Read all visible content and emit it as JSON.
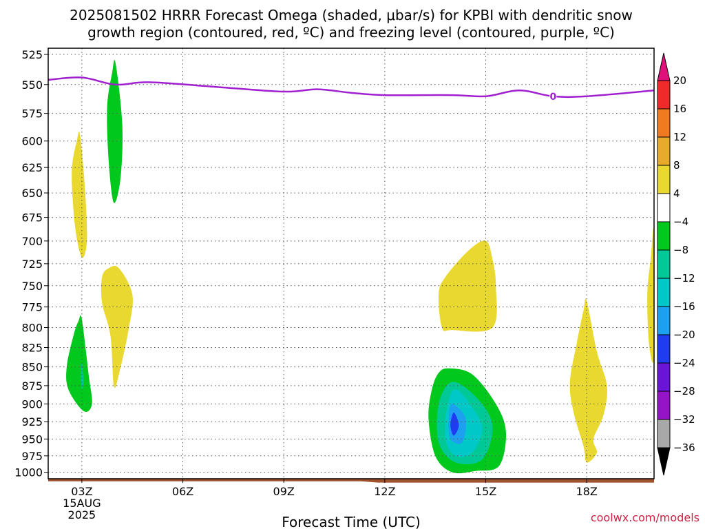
{
  "title_line1": "2025081502 HRRR Forecast Omega (shaded, μbar/s) for KPBI with dendritic snow",
  "title_line2": "growth region (contoured, red, ºC) and freezing level (contoured, purple, ºC)",
  "credit": "coolwx.com/models",
  "chart_data": {
    "type": "heatmap",
    "xlabel": "Forecast Time (UTC)",
    "ylabel": "",
    "x_range_hours": [
      2,
      20
    ],
    "y_range_hPa": [
      1010,
      520
    ],
    "grid": true,
    "y_ticks": [
      525,
      550,
      575,
      600,
      625,
      650,
      675,
      700,
      725,
      750,
      775,
      800,
      825,
      850,
      875,
      900,
      925,
      950,
      975,
      1000
    ],
    "x_ticks": [
      {
        "hour": 3,
        "label": "03Z",
        "date": "15AUG",
        "year": "2025"
      },
      {
        "hour": 6,
        "label": "06Z"
      },
      {
        "hour": 9,
        "label": "09Z"
      },
      {
        "hour": 12,
        "label": "12Z"
      },
      {
        "hour": 15,
        "label": "15Z"
      },
      {
        "hour": 18,
        "label": "18Z"
      }
    ],
    "freezing_level": {
      "color": "#a020d0",
      "label": "0",
      "label_at": [
        17.0,
        560
      ],
      "points": [
        [
          2.0,
          546
        ],
        [
          3.0,
          544
        ],
        [
          4.0,
          550
        ],
        [
          5.0,
          548
        ],
        [
          7.0,
          552
        ],
        [
          9.0,
          556
        ],
        [
          10.0,
          554
        ],
        [
          11.0,
          557
        ],
        [
          12.0,
          559
        ],
        [
          14.0,
          559
        ],
        [
          15.0,
          560
        ],
        [
          16.0,
          555
        ],
        [
          17.0,
          560
        ],
        [
          18.0,
          560
        ],
        [
          20.0,
          555
        ]
      ]
    },
    "ground": {
      "color": "#a0522d",
      "points": [
        [
          2.0,
          1014
        ],
        [
          11.3,
          1014
        ],
        [
          11.8,
          1016
        ],
        [
          20.0,
          1016
        ]
      ]
    },
    "omega_regions": [
      {
        "value": 4,
        "points": [
          [
            2.95,
            595
          ],
          [
            3.1,
            650
          ],
          [
            3.15,
            700
          ],
          [
            3.0,
            718
          ],
          [
            2.8,
            685
          ],
          [
            2.7,
            630
          ],
          [
            2.85,
            600
          ]
        ]
      },
      {
        "value": -4,
        "points": [
          [
            4.0,
            532
          ],
          [
            4.2,
            585
          ],
          [
            4.15,
            635
          ],
          [
            3.95,
            660
          ],
          [
            3.8,
            620
          ],
          [
            3.75,
            570
          ],
          [
            3.9,
            540
          ]
        ]
      },
      {
        "value": 4,
        "points": [
          [
            4.1,
            730
          ],
          [
            4.5,
            760
          ],
          [
            4.4,
            800
          ],
          [
            4.1,
            860
          ],
          [
            3.95,
            875
          ],
          [
            3.85,
            810
          ],
          [
            3.6,
            770
          ],
          [
            3.6,
            740
          ],
          [
            3.8,
            730
          ]
        ]
      },
      {
        "value": -4,
        "points": [
          [
            3.0,
            790
          ],
          [
            3.2,
            860
          ],
          [
            3.3,
            900
          ],
          [
            3.05,
            910
          ],
          [
            2.6,
            880
          ],
          [
            2.55,
            850
          ],
          [
            2.75,
            810
          ],
          [
            2.9,
            792
          ]
        ]
      },
      {
        "value": -8,
        "points": [
          [
            3.0,
            845
          ],
          [
            3.05,
            870
          ],
          [
            3.0,
            880
          ],
          [
            2.97,
            860
          ]
        ]
      },
      {
        "value": 4,
        "points": [
          [
            15.0,
            700
          ],
          [
            15.2,
            720
          ],
          [
            15.3,
            750
          ],
          [
            15.2,
            800
          ],
          [
            14.0,
            803
          ],
          [
            13.7,
            800
          ],
          [
            13.6,
            760
          ],
          [
            13.8,
            740
          ],
          [
            14.5,
            710
          ]
        ]
      },
      {
        "value": -4,
        "points": [
          [
            13.9,
            852
          ],
          [
            14.6,
            860
          ],
          [
            15.3,
            900
          ],
          [
            15.6,
            940
          ],
          [
            15.4,
            990
          ],
          [
            14.7,
            998
          ],
          [
            14.0,
            1000
          ],
          [
            13.5,
            975
          ],
          [
            13.3,
            920
          ],
          [
            13.4,
            880
          ],
          [
            13.6,
            858
          ]
        ]
      },
      {
        "value": -8,
        "points": [
          [
            14.0,
            870
          ],
          [
            14.7,
            890
          ],
          [
            15.2,
            930
          ],
          [
            14.9,
            980
          ],
          [
            14.1,
            985
          ],
          [
            13.6,
            955
          ],
          [
            13.6,
            900
          ]
        ]
      },
      {
        "value": -12,
        "points": [
          [
            14.1,
            880
          ],
          [
            14.6,
            905
          ],
          [
            14.9,
            935
          ],
          [
            14.6,
            970
          ],
          [
            14.1,
            975
          ],
          [
            13.8,
            950
          ],
          [
            13.85,
            905
          ]
        ]
      },
      {
        "value": -16,
        "points": [
          [
            14.0,
            900
          ],
          [
            14.4,
            920
          ],
          [
            14.3,
            955
          ],
          [
            13.95,
            950
          ],
          [
            13.9,
            920
          ]
        ]
      },
      {
        "value": -20,
        "points": [
          [
            14.05,
            912
          ],
          [
            14.2,
            930
          ],
          [
            14.05,
            945
          ],
          [
            13.95,
            930
          ]
        ]
      },
      {
        "value": 4,
        "points": [
          [
            18.0,
            768
          ],
          [
            18.3,
            830
          ],
          [
            18.6,
            875
          ],
          [
            18.5,
            915
          ],
          [
            18.2,
            950
          ],
          [
            18.3,
            970
          ],
          [
            18.0,
            985
          ],
          [
            17.9,
            960
          ],
          [
            17.6,
            910
          ],
          [
            17.5,
            870
          ],
          [
            17.7,
            820
          ],
          [
            17.9,
            780
          ]
        ]
      },
      {
        "value": 4,
        "points": [
          [
            20.0,
            690
          ],
          [
            20.0,
            835
          ],
          [
            19.85,
            820
          ],
          [
            19.8,
            760
          ],
          [
            19.9,
            720
          ]
        ]
      }
    ],
    "colorbar": {
      "labels": [
        "20",
        "16",
        "12",
        "8",
        "4",
        "−4",
        "−8",
        "−12",
        "−16",
        "−20",
        "−24",
        "−28",
        "−32",
        "−36"
      ],
      "top_arrow_color": "#e0107a",
      "bottom_arrow_color": "#000000",
      "bands": [
        "#f02a2a",
        "#f07a20",
        "#e8aa2a",
        "#e8d830",
        "#ffffff",
        "#00c81c",
        "#00c896",
        "#00c8c8",
        "#1ea0f0",
        "#1f3cf0",
        "#6a14d8",
        "#9614c8",
        "#a8a8a8"
      ]
    },
    "omega_colors": {
      "4": "#e8d830",
      "-4": "#00c81c",
      "-8": "#00c896",
      "-12": "#00c8c8",
      "-16": "#1ea0f0",
      "-20": "#1f3cf0"
    }
  }
}
